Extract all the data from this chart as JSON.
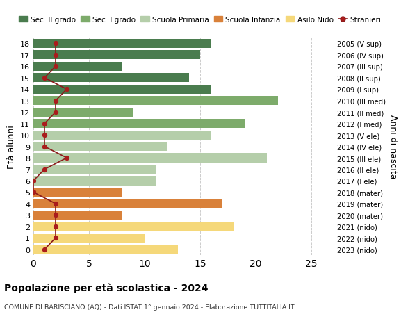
{
  "ages": [
    18,
    17,
    16,
    15,
    14,
    13,
    12,
    11,
    10,
    9,
    8,
    7,
    6,
    5,
    4,
    3,
    2,
    1,
    0
  ],
  "years": [
    "2005 (V sup)",
    "2006 (IV sup)",
    "2007 (III sup)",
    "2008 (II sup)",
    "2009 (I sup)",
    "2010 (III med)",
    "2011 (II med)",
    "2012 (I med)",
    "2013 (V ele)",
    "2014 (IV ele)",
    "2015 (III ele)",
    "2016 (II ele)",
    "2017 (I ele)",
    "2018 (mater)",
    "2019 (mater)",
    "2020 (mater)",
    "2021 (nido)",
    "2022 (nido)",
    "2023 (nido)"
  ],
  "bar_values": [
    16,
    15,
    8,
    14,
    16,
    22,
    9,
    19,
    16,
    12,
    21,
    11,
    11,
    8,
    17,
    8,
    18,
    10,
    13
  ],
  "bar_colors": [
    "#4a7c4e",
    "#4a7c4e",
    "#4a7c4e",
    "#4a7c4e",
    "#4a7c4e",
    "#7dab6b",
    "#7dab6b",
    "#7dab6b",
    "#b5ceaa",
    "#b5ceaa",
    "#b5ceaa",
    "#b5ceaa",
    "#b5ceaa",
    "#d9813a",
    "#d9813a",
    "#d9813a",
    "#f5d87a",
    "#f5d87a",
    "#f5d87a"
  ],
  "stranieri_values": [
    2,
    2,
    2,
    1,
    3,
    2,
    2,
    1,
    1,
    1,
    3,
    1,
    0,
    0,
    2,
    2,
    2,
    2,
    1
  ],
  "legend_labels": [
    "Sec. II grado",
    "Sec. I grado",
    "Scuola Primaria",
    "Scuola Infanzia",
    "Asilo Nido",
    "Stranieri"
  ],
  "legend_colors": [
    "#4a7c4e",
    "#7dab6b",
    "#b5ceaa",
    "#d9813a",
    "#f5d87a",
    "#aa1c1c"
  ],
  "ylabel_left": "Età alunni",
  "ylabel_right": "Anni di nascita",
  "title": "Popolazione per età scolastica - 2024",
  "subtitle": "COMUNE DI BARISCIANO (AQ) - Dati ISTAT 1° gennaio 2024 - Elaborazione TUTTITALIA.IT",
  "xlim": [
    0,
    27
  ],
  "xticks": [
    0,
    5,
    10,
    15,
    20,
    25
  ],
  "background_color": "#ffffff",
  "grid_color": "#cccccc",
  "stranieri_line_color": "#8b1a1a",
  "stranieri_dot_color": "#aa1c1c"
}
